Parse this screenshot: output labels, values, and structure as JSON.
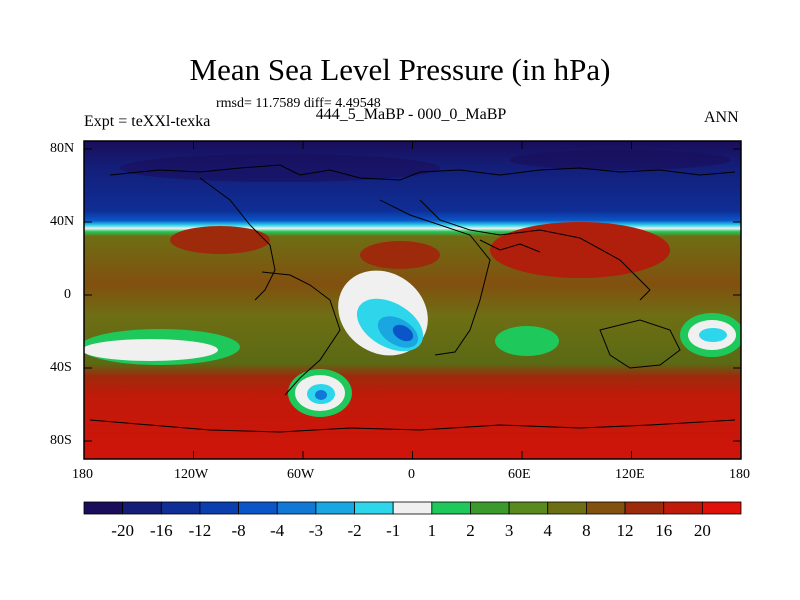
{
  "title": "Mean Sea Level Pressure (in hPa)",
  "stats_line": "rmsd= 11.7589 diff= 4.49548",
  "subtitle": "444_5_MaBP - 000_0_MaBP",
  "experiment": "Expt = teXXl-texka",
  "season": "ANN",
  "chart_data": {
    "type": "heatmap",
    "title": "Mean Sea Level Pressure (in hPa)",
    "projection": "cylindrical-equidistant",
    "x_range": [
      -180,
      180
    ],
    "y_range": [
      -90,
      90
    ],
    "lat_ticks": [
      "80N",
      "40N",
      "0",
      "40S",
      "80S"
    ],
    "lon_ticks": [
      "180",
      "120W",
      "60W",
      "0",
      "60E",
      "120E",
      "180"
    ],
    "colorbar_labels": [
      "-20",
      "-16",
      "-12",
      "-8",
      "-4",
      "-3",
      "-2",
      "-1",
      "1",
      "2",
      "3",
      "4",
      "8",
      "12",
      "16",
      "20"
    ],
    "colorbar_colors": [
      "#1a0d5a",
      "#141e78",
      "#0f2e96",
      "#0b3eaf",
      "#0a56c8",
      "#1178d6",
      "#1aa6e0",
      "#2ed6ec",
      "#f0f0f0",
      "#1ec85a",
      "#3c9a2c",
      "#5a8a1e",
      "#6e6e14",
      "#82500f",
      "#9e2a0c",
      "#c01a0a",
      "#e0100a"
    ],
    "bands": [
      {
        "lat_from": 90,
        "lat_to": 75,
        "value": -18
      },
      {
        "lat_from": 75,
        "lat_to": 55,
        "value": -12
      },
      {
        "lat_from": 55,
        "lat_to": 45,
        "value": -6
      },
      {
        "lat_from": 45,
        "lat_to": 40,
        "value": 0
      },
      {
        "lat_from": 40,
        "lat_to": 10,
        "value": 7
      },
      {
        "lat_from": 10,
        "lat_to": -45,
        "value": 4
      },
      {
        "lat_from": -45,
        "lat_to": -90,
        "value": 18
      }
    ]
  }
}
